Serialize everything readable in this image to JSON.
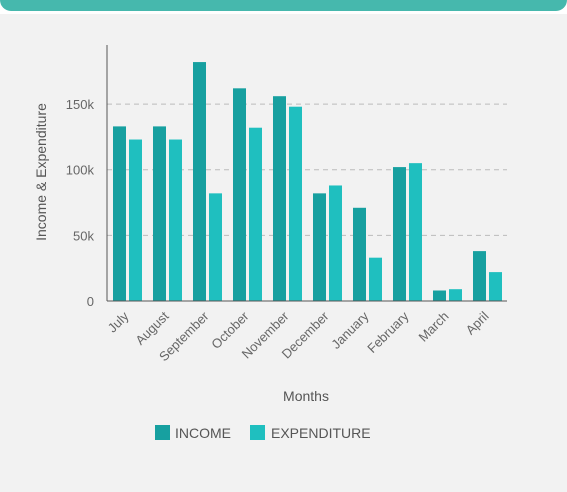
{
  "chart_data": {
    "type": "bar",
    "title": "",
    "xlabel": "Months",
    "ylabel": "Income & Expenditure",
    "categories": [
      "July",
      "August",
      "September",
      "October",
      "November",
      "December",
      "January",
      "February",
      "March",
      "April"
    ],
    "series": [
      {
        "name": "INCOME",
        "color": "#17a0a0",
        "values": [
          133000,
          133000,
          182000,
          162000,
          156000,
          82000,
          71000,
          102000,
          8000,
          38000
        ]
      },
      {
        "name": "EXPENDITURE",
        "color": "#1fbfbf",
        "values": [
          123000,
          123000,
          82000,
          132000,
          148000,
          88000,
          33000,
          105000,
          9000,
          22000
        ]
      }
    ],
    "ylim": [
      0,
      195000
    ],
    "yticks": [
      0,
      50000,
      100000,
      150000
    ],
    "ytick_labels": [
      "0",
      "50k",
      "100k",
      "150k"
    ],
    "grid": true,
    "legend": "bottom-center"
  },
  "colors": {
    "background": "#f2f2f2",
    "accent_band": "#46b8ad",
    "axis": "#555555",
    "grid": "#bbbbbb"
  }
}
